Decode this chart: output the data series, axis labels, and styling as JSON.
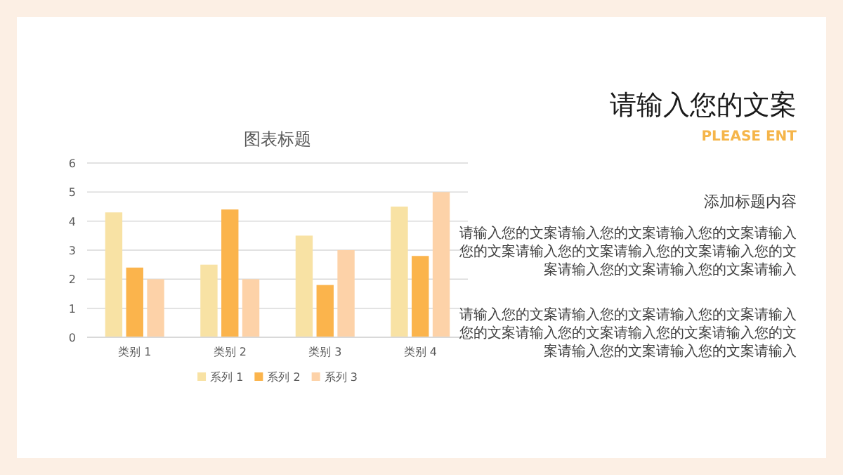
{
  "chart_data": [
    {
      "type": "bar",
      "title": "图表标题",
      "categories": [
        "类别 1",
        "类别 2",
        "类别 3",
        "类别 4"
      ],
      "series": [
        {
          "name": "系列 1",
          "color": "#f8e2a4",
          "values": [
            4.3,
            2.5,
            3.5,
            4.5
          ]
        },
        {
          "name": "系列 2",
          "color": "#fbb44c",
          "values": [
            2.4,
            4.4,
            1.8,
            2.8
          ]
        },
        {
          "name": "系列 3",
          "color": "#fdd2a8",
          "values": [
            2,
            2,
            3,
            5
          ]
        }
      ],
      "ylim": [
        0,
        6
      ],
      "yticks": [
        0,
        1,
        2,
        3,
        4,
        5,
        6
      ],
      "grid": "y",
      "legend": "bottom"
    },
    {
      "type": "other",
      "title": "请输入您的文案",
      "subtitle": "PLEASE ENT",
      "annotations": [
        "添加标题内容",
        "请输入您的文案请输入您的文案请输入您的文案请输入您的文案请输入您的文案请输入您的文案请输入您的文案请输入您的文案请输入您的文案请输入",
        "请输入您的文案请输入您的文案请输入您的文案请输入您的文案请输入您的文案请输入您的文案请输入您的文案请输入您的文案请输入您的文案请输入"
      ]
    }
  ]
}
